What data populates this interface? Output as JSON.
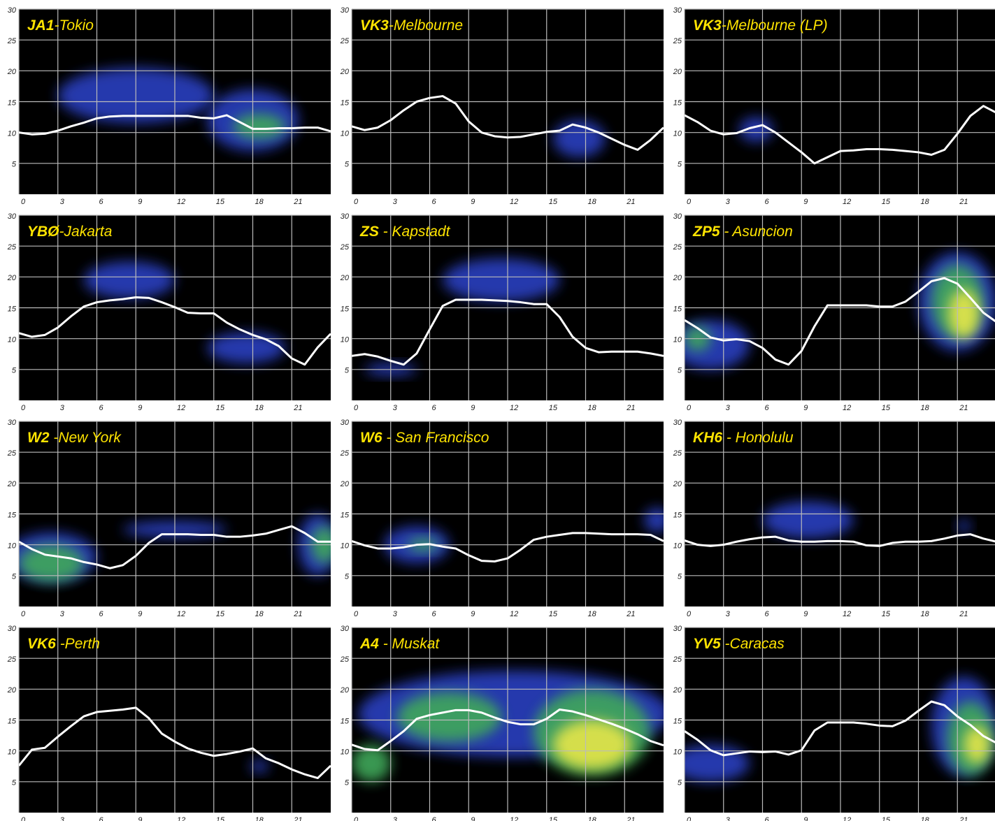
{
  "chart_data": [
    {
      "type": "line",
      "callsign": "JA1",
      "location": "-Tokio",
      "x": [
        0,
        1,
        2,
        3,
        4,
        5,
        6,
        7,
        8,
        9,
        10,
        11,
        12,
        13,
        14,
        15,
        16,
        17,
        18,
        19,
        20,
        21,
        22,
        23,
        24
      ],
      "values": [
        10,
        9.7,
        9.8,
        10.3,
        11,
        11.6,
        12.3,
        12.6,
        12.7,
        12.7,
        12.7,
        12.7,
        12.7,
        12.7,
        12.4,
        12.3,
        12.8,
        11.7,
        10.6,
        10.6,
        10.7,
        10.7,
        10.8,
        10.8,
        10.2
      ],
      "color": "#ffffff",
      "xlim": [
        0,
        24
      ],
      "ylim": [
        0,
        30
      ],
      "xticks": [
        0,
        3,
        6,
        9,
        12,
        15,
        18,
        21
      ],
      "yticks": [
        5,
        10,
        15,
        20,
        25,
        30
      ],
      "grid": true,
      "heatmap_colors": [
        "#2a3fc0",
        "#3fa85a",
        "#e6e64a"
      ],
      "heatmap": [
        {
          "x": 9,
          "y": 16,
          "rx": 6,
          "ry": 4.5,
          "level": 0
        },
        {
          "x": 18,
          "y": 12,
          "rx": 3.5,
          "ry": 5,
          "level": 0
        },
        {
          "x": 18.5,
          "y": 11,
          "rx": 2,
          "ry": 2,
          "level": 1
        }
      ]
    },
    {
      "type": "line",
      "callsign": "VK3",
      "location": "-Melbourne",
      "x": [
        0,
        1,
        2,
        3,
        4,
        5,
        6,
        7,
        8,
        9,
        10,
        11,
        12,
        13,
        14,
        15,
        16,
        17,
        18,
        19,
        20,
        21,
        22,
        23,
        24
      ],
      "values": [
        11,
        10.4,
        10.8,
        12,
        13.6,
        15,
        15.6,
        15.9,
        14.7,
        11.8,
        10,
        9.4,
        9.2,
        9.3,
        9.7,
        10.1,
        10.3,
        11.3,
        10.8,
        10,
        9,
        8,
        7.2,
        8.8,
        10.8
      ],
      "color": "#ffffff",
      "xlim": [
        0,
        24
      ],
      "ylim": [
        0,
        30
      ],
      "xticks": [
        0,
        3,
        6,
        9,
        12,
        15,
        18,
        21
      ],
      "yticks": [
        5,
        10,
        15,
        20,
        25,
        30
      ],
      "grid": true,
      "heatmap_colors": [
        "#2a3fc0",
        "#3fa85a",
        "#e6e64a"
      ],
      "heatmap": [
        {
          "x": 17.5,
          "y": 9,
          "rx": 2,
          "ry": 3,
          "level": 0
        }
      ]
    },
    {
      "type": "line",
      "callsign": "VK3",
      "location": "-Melbourne (LP)",
      "x": [
        0,
        1,
        2,
        3,
        4,
        5,
        6,
        7,
        8,
        9,
        10,
        11,
        12,
        13,
        14,
        15,
        16,
        17,
        18,
        19,
        20,
        21,
        22,
        23,
        24
      ],
      "values": [
        12.8,
        11.7,
        10.3,
        9.7,
        9.9,
        10.7,
        11.2,
        10,
        8.4,
        6.8,
        5,
        6,
        7,
        7.1,
        7.3,
        7.3,
        7.2,
        7,
        6.8,
        6.4,
        7.2,
        9.8,
        12.7,
        14.3,
        13.2
      ],
      "color": "#ffffff",
      "xlim": [
        0,
        24
      ],
      "ylim": [
        0,
        30
      ],
      "xticks": [
        0,
        3,
        6,
        9,
        12,
        15,
        18,
        21
      ],
      "yticks": [
        5,
        10,
        15,
        20,
        25,
        30
      ],
      "grid": true,
      "heatmap_colors": [
        "#2a3fc0",
        "#3fa85a",
        "#e6e64a"
      ],
      "heatmap": [
        {
          "x": 5.5,
          "y": 10.5,
          "rx": 1.3,
          "ry": 2,
          "level": 0
        }
      ]
    },
    {
      "type": "line",
      "callsign": "YBØ",
      "location": "-Jakarta",
      "x": [
        0,
        1,
        2,
        3,
        4,
        5,
        6,
        7,
        8,
        9,
        10,
        11,
        12,
        13,
        14,
        15,
        16,
        17,
        18,
        19,
        20,
        21,
        22,
        23,
        24
      ],
      "values": [
        10.9,
        10.3,
        10.6,
        11.8,
        13.6,
        15.2,
        15.9,
        16.2,
        16.4,
        16.7,
        16.6,
        15.9,
        15.1,
        14.2,
        14.1,
        14.1,
        12.6,
        11.5,
        10.6,
        9.9,
        8.8,
        6.8,
        5.8,
        8.6,
        10.8
      ],
      "color": "#ffffff",
      "xlim": [
        0,
        24
      ],
      "ylim": [
        0,
        30
      ],
      "xticks": [
        0,
        3,
        6,
        9,
        12,
        15,
        18,
        21
      ],
      "yticks": [
        5,
        10,
        15,
        20,
        25,
        30
      ],
      "grid": true,
      "heatmap_colors": [
        "#2a3fc0",
        "#3fa85a",
        "#e6e64a"
      ],
      "heatmap": [
        {
          "x": 8.5,
          "y": 19.5,
          "rx": 3.5,
          "ry": 3,
          "level": 0
        },
        {
          "x": 17.5,
          "y": 8.5,
          "rx": 3,
          "ry": 2.5,
          "level": 0
        }
      ]
    },
    {
      "type": "line",
      "callsign": "ZS",
      "location": " - Kapstadt",
      "x": [
        0,
        1,
        2,
        3,
        4,
        5,
        6,
        7,
        8,
        9,
        10,
        11,
        12,
        13,
        14,
        15,
        16,
        17,
        18,
        19,
        20,
        21,
        22,
        23,
        24
      ],
      "values": [
        7.2,
        7.5,
        7.1,
        6.4,
        5.8,
        7.6,
        11.5,
        15.3,
        16.3,
        16.3,
        16.3,
        16.2,
        16.1,
        15.9,
        15.6,
        15.6,
        13.5,
        10.3,
        8.5,
        7.8,
        7.9,
        7.9,
        7.9,
        7.6,
        7.2
      ],
      "color": "#ffffff",
      "xlim": [
        0,
        24
      ],
      "ylim": [
        0,
        30
      ],
      "xticks": [
        0,
        3,
        6,
        9,
        12,
        15,
        18,
        21
      ],
      "yticks": [
        5,
        10,
        15,
        20,
        25,
        30
      ],
      "grid": true,
      "heatmap_colors": [
        "#2a3fc0",
        "#3fa85a",
        "#e6e64a"
      ],
      "heatmap": [
        {
          "x": 11.5,
          "y": 19.5,
          "rx": 4.5,
          "ry": 3.5,
          "level": 0
        },
        {
          "x": 3,
          "y": 5,
          "rx": 2,
          "ry": 1,
          "level": 0
        }
      ]
    },
    {
      "type": "line",
      "callsign": "ZP5",
      "location": " - Asuncion",
      "x": [
        0,
        1,
        2,
        3,
        4,
        5,
        6,
        7,
        8,
        9,
        10,
        11,
        12,
        13,
        14,
        15,
        16,
        17,
        18,
        19,
        20,
        21,
        22,
        23,
        24
      ],
      "values": [
        13,
        11.7,
        10.2,
        9.7,
        9.9,
        9.6,
        8.5,
        6.6,
        5.8,
        8,
        12,
        15.4,
        15.4,
        15.4,
        15.4,
        15.2,
        15.2,
        16,
        17.6,
        19.3,
        19.8,
        18.9,
        16.6,
        14.2,
        12.7
      ],
      "color": "#ffffff",
      "xlim": [
        0,
        24
      ],
      "ylim": [
        0,
        30
      ],
      "xticks": [
        0,
        3,
        6,
        9,
        12,
        15,
        18,
        21
      ],
      "yticks": [
        5,
        10,
        15,
        20,
        25,
        30
      ],
      "grid": true,
      "heatmap_colors": [
        "#2a3fc0",
        "#3fa85a",
        "#e6e64a"
      ],
      "heatmap": [
        {
          "x": 2,
          "y": 9,
          "rx": 3,
          "ry": 4,
          "level": 0
        },
        {
          "x": 21,
          "y": 16,
          "rx": 3,
          "ry": 8,
          "level": 0
        },
        {
          "x": 1,
          "y": 10,
          "rx": 1,
          "ry": 2,
          "level": 1
        },
        {
          "x": 21,
          "y": 16,
          "rx": 2,
          "ry": 6,
          "level": 1
        },
        {
          "x": 21.5,
          "y": 14,
          "rx": 1.2,
          "ry": 4,
          "level": 2
        }
      ]
    },
    {
      "type": "line",
      "callsign": "W2",
      "location": " -New York",
      "x": [
        0,
        1,
        2,
        3,
        4,
        5,
        6,
        7,
        8,
        9,
        10,
        11,
        12,
        13,
        14,
        15,
        16,
        17,
        18,
        19,
        20,
        21,
        22,
        23,
        24
      ],
      "values": [
        10.5,
        9.3,
        8.4,
        8.1,
        7.8,
        7.2,
        6.8,
        6.2,
        6.7,
        8.2,
        10.3,
        11.7,
        11.7,
        11.7,
        11.6,
        11.6,
        11.3,
        11.3,
        11.5,
        11.8,
        12.4,
        13,
        11.9,
        10.5,
        10.5
      ],
      "color": "#ffffff",
      "xlim": [
        0,
        24
      ],
      "ylim": [
        0,
        30
      ],
      "xticks": [
        0,
        3,
        6,
        9,
        12,
        15,
        18,
        21
      ],
      "yticks": [
        5,
        10,
        15,
        20,
        25,
        30
      ],
      "grid": true,
      "heatmap_colors": [
        "#2a3fc0",
        "#3fa85a",
        "#e6e64a"
      ],
      "heatmap": [
        {
          "x": 2.5,
          "y": 8,
          "rx": 3.5,
          "ry": 4,
          "level": 0
        },
        {
          "x": 23,
          "y": 10,
          "rx": 1.5,
          "ry": 5,
          "level": 0
        },
        {
          "x": 12,
          "y": 12.5,
          "rx": 4,
          "ry": 1.3,
          "level": 0
        },
        {
          "x": 2.5,
          "y": 7,
          "rx": 2.5,
          "ry": 3,
          "level": 1
        },
        {
          "x": 23.5,
          "y": 10,
          "rx": 1,
          "ry": 3,
          "level": 1
        }
      ]
    },
    {
      "type": "line",
      "callsign": "W6",
      "location": " - San Francisco",
      "x": [
        0,
        1,
        2,
        3,
        4,
        5,
        6,
        7,
        8,
        9,
        10,
        11,
        12,
        13,
        14,
        15,
        16,
        17,
        18,
        19,
        20,
        21,
        22,
        23,
        24
      ],
      "values": [
        10.6,
        9.9,
        9.4,
        9.4,
        9.6,
        10,
        10.1,
        9.7,
        9.4,
        8.3,
        7.4,
        7.3,
        7.8,
        9.2,
        10.8,
        11.3,
        11.6,
        11.9,
        11.9,
        11.8,
        11.7,
        11.7,
        11.7,
        11.6,
        10.6
      ],
      "color": "#ffffff",
      "xlim": [
        0,
        24
      ],
      "ylim": [
        0,
        30
      ],
      "xticks": [
        0,
        3,
        6,
        9,
        12,
        15,
        18,
        21
      ],
      "yticks": [
        5,
        10,
        15,
        20,
        25,
        30
      ],
      "grid": true,
      "heatmap_colors": [
        "#2a3fc0",
        "#3fa85a",
        "#e6e64a"
      ],
      "heatmap": [
        {
          "x": 5,
          "y": 10,
          "rx": 2.5,
          "ry": 3,
          "level": 0
        },
        {
          "x": 23.5,
          "y": 14,
          "rx": 1,
          "ry": 2,
          "level": 0
        },
        {
          "x": 5.5,
          "y": 10,
          "rx": 1.2,
          "ry": 1,
          "level": 1
        }
      ]
    },
    {
      "type": "line",
      "callsign": "KH6",
      "location": " - Honolulu",
      "x": [
        0,
        1,
        2,
        3,
        4,
        5,
        6,
        7,
        8,
        9,
        10,
        11,
        12,
        13,
        14,
        15,
        16,
        17,
        18,
        19,
        20,
        21,
        22,
        23,
        24
      ],
      "values": [
        10.7,
        10,
        9.8,
        10,
        10.5,
        10.9,
        11.2,
        11.3,
        10.7,
        10.5,
        10.5,
        10.6,
        10.6,
        10.5,
        9.9,
        9.8,
        10.3,
        10.5,
        10.5,
        10.6,
        11,
        11.5,
        11.7,
        11,
        10.5
      ],
      "color": "#ffffff",
      "xlim": [
        0,
        24
      ],
      "ylim": [
        0,
        30
      ],
      "xticks": [
        0,
        3,
        6,
        9,
        12,
        15,
        18,
        21
      ],
      "yticks": [
        5,
        10,
        15,
        20,
        25,
        30
      ],
      "grid": true,
      "heatmap_colors": [
        "#2a3fc0",
        "#3fa85a",
        "#e6e64a"
      ],
      "heatmap": [
        {
          "x": 9.5,
          "y": 14,
          "rx": 3.5,
          "ry": 3,
          "level": 0
        },
        {
          "x": 21.5,
          "y": 13,
          "rx": 0.5,
          "ry": 1,
          "level": 0
        }
      ]
    },
    {
      "type": "line",
      "callsign": "VK6",
      "location": " -Perth",
      "x": [
        0,
        1,
        2,
        3,
        4,
        5,
        6,
        7,
        8,
        9,
        10,
        11,
        12,
        13,
        14,
        15,
        16,
        17,
        18,
        19,
        20,
        21,
        22,
        23,
        24
      ],
      "values": [
        7.6,
        10.2,
        10.5,
        12.3,
        14,
        15.6,
        16.3,
        16.5,
        16.7,
        17,
        15.3,
        12.8,
        11.5,
        10.4,
        9.7,
        9.2,
        9.5,
        9.9,
        10.4,
        8.8,
        8,
        7,
        6.2,
        5.6,
        7.6
      ],
      "color": "#ffffff",
      "xlim": [
        0,
        24
      ],
      "ylim": [
        0,
        30
      ],
      "xticks": [
        0,
        3,
        6,
        9,
        12,
        15,
        18,
        21
      ],
      "yticks": [
        5,
        10,
        15,
        20,
        25,
        30
      ],
      "grid": true,
      "heatmap_colors": [
        "#2a3fc0",
        "#3fa85a",
        "#e6e64a"
      ],
      "heatmap": [
        {
          "x": 18.5,
          "y": 7.5,
          "rx": 0.7,
          "ry": 1,
          "level": 0
        }
      ]
    },
    {
      "type": "line",
      "callsign": "A4",
      "location": " - Muskat",
      "x": [
        0,
        1,
        2,
        3,
        4,
        5,
        6,
        7,
        8,
        9,
        10,
        11,
        12,
        13,
        14,
        15,
        16,
        17,
        18,
        19,
        20,
        21,
        22,
        23,
        24
      ],
      "values": [
        11,
        10.3,
        10.1,
        11.6,
        13.2,
        15.2,
        15.8,
        16.2,
        16.6,
        16.6,
        16.2,
        15.4,
        14.7,
        14.3,
        14.3,
        15.2,
        16.7,
        16.4,
        15.8,
        15.1,
        14.4,
        13.6,
        12.7,
        11.6,
        10.9
      ],
      "color": "#ffffff",
      "xlim": [
        0,
        24
      ],
      "ylim": [
        0,
        30
      ],
      "xticks": [
        0,
        3,
        6,
        9,
        12,
        15,
        18,
        21
      ],
      "yticks": [
        5,
        10,
        15,
        20,
        25,
        30
      ],
      "grid": true,
      "heatmap_colors": [
        "#2a3fc0",
        "#3fa85a",
        "#e6e64a"
      ],
      "heatmap": [
        {
          "x": 12.5,
          "y": 16,
          "rx": 12,
          "ry": 7,
          "level": 0
        },
        {
          "x": 7.5,
          "y": 15.5,
          "rx": 4,
          "ry": 4,
          "level": 1
        },
        {
          "x": 18.5,
          "y": 13,
          "rx": 4.5,
          "ry": 7,
          "level": 1
        },
        {
          "x": 1.5,
          "y": 8,
          "rx": 1.5,
          "ry": 3,
          "level": 1
        },
        {
          "x": 18.5,
          "y": 11,
          "rx": 3,
          "ry": 4,
          "level": 2
        }
      ]
    },
    {
      "type": "line",
      "callsign": "YV5",
      "location": " -Caracas",
      "x": [
        0,
        1,
        2,
        3,
        4,
        5,
        6,
        7,
        8,
        9,
        10,
        11,
        12,
        13,
        14,
        15,
        16,
        17,
        18,
        19,
        20,
        21,
        22,
        23,
        24
      ],
      "values": [
        13.2,
        11.8,
        10.1,
        9.3,
        9.6,
        9.9,
        9.8,
        9.9,
        9.4,
        10.1,
        13.3,
        14.6,
        14.6,
        14.6,
        14.4,
        14.1,
        14,
        14.9,
        16.5,
        18,
        17.4,
        15.6,
        14.2,
        12.4,
        11.3
      ],
      "color": "#ffffff",
      "xlim": [
        0,
        24
      ],
      "ylim": [
        0,
        30
      ],
      "xticks": [
        0,
        3,
        6,
        9,
        12,
        15,
        18,
        21
      ],
      "yticks": [
        5,
        10,
        15,
        20,
        25,
        30
      ],
      "grid": true,
      "heatmap_colors": [
        "#2a3fc0",
        "#3fa85a",
        "#e6e64a"
      ],
      "heatmap": [
        {
          "x": 2,
          "y": 8,
          "rx": 3,
          "ry": 3,
          "level": 0
        },
        {
          "x": 21.5,
          "y": 14,
          "rx": 2.5,
          "ry": 8,
          "level": 0
        },
        {
          "x": 22,
          "y": 12,
          "rx": 1.8,
          "ry": 6,
          "level": 1
        },
        {
          "x": 22.5,
          "y": 11,
          "rx": 1,
          "ry": 3,
          "level": 2
        }
      ]
    }
  ]
}
